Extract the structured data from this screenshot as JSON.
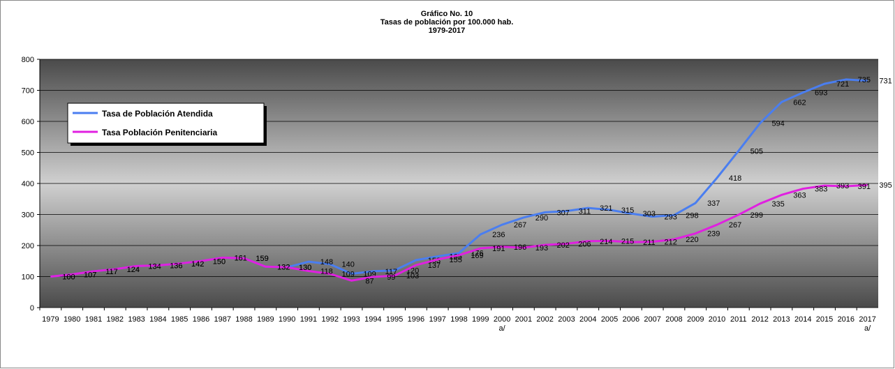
{
  "chart_data": {
    "type": "line",
    "title_lines": [
      "Gráfico No. 10",
      "Tasas de población por 100.000 hab.",
      "1979-2017"
    ],
    "categories": [
      "1979",
      "1980",
      "1981",
      "1982",
      "1983",
      "1984",
      "1985",
      "1986",
      "1987",
      "1988",
      "1989",
      "1990",
      "1991",
      "1992",
      "1993",
      "1994",
      "1995",
      "1996",
      "1997",
      "1998",
      "1999",
      "2000\na/",
      "2001",
      "2002",
      "2003",
      "2004",
      "2005",
      "2006",
      "2007",
      "2008",
      "2009",
      "2010",
      "2011",
      "2012",
      "2013",
      "2014",
      "2015",
      "2016",
      "2017\na/"
    ],
    "series": [
      {
        "name": "Tasa de Población Atendida",
        "color": "#4a7ef0",
        "values": [
          100,
          107,
          117,
          124,
          134,
          136,
          142,
          150,
          161,
          159,
          132,
          130,
          148,
          140,
          109,
          117,
          120,
          153,
          165,
          176,
          236,
          267,
          290,
          307,
          311,
          321,
          315,
          303,
          293,
          298,
          337,
          418,
          505,
          594,
          662,
          693,
          721,
          735,
          731
        ]
      },
      {
        "name": "Tasa Población Penitenciaria",
        "color": "#e020e0",
        "values": [
          100,
          107,
          117,
          124,
          134,
          136,
          142,
          150,
          161,
          159,
          132,
          130,
          118,
          109,
          87,
          99,
          103,
          137,
          155,
          169,
          191,
          196,
          193,
          202,
          206,
          214,
          215,
          211,
          212,
          220,
          239,
          267,
          299,
          335,
          363,
          383,
          393,
          391,
          395
        ]
      }
    ],
    "ylim": [
      0,
      800
    ],
    "yticks": [
      0,
      100,
      200,
      300,
      400,
      500,
      600,
      700,
      800
    ],
    "grid": true,
    "legend": "upper left"
  }
}
